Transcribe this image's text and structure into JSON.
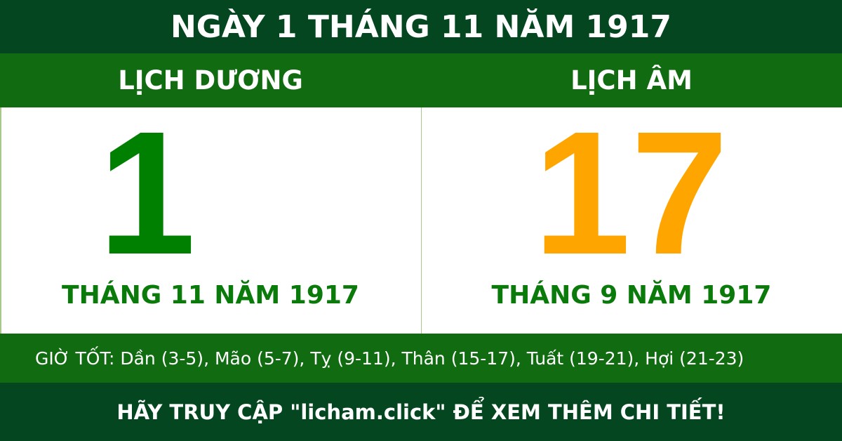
{
  "header": {
    "title": "NGÀY 1 THÁNG 11 NĂM 1917"
  },
  "solar": {
    "label": "LỊCH DƯƠNG",
    "day": "1",
    "month_year": "THÁNG 11 NĂM 1917"
  },
  "lunar": {
    "label": "LỊCH ÂM",
    "day": "17",
    "month_year": "THÁNG 9 NĂM 1917"
  },
  "good_hours": "GIỜ TỐT: Dần (3-5), Mão (5-7), Tỵ (9-11), Thân (15-17), Tuất (19-21), Hợi (21-23)",
  "footer": {
    "cta": "HÃY TRUY CẬP \"licham.click\" ĐỂ XEM THÊM CHI TIẾT!"
  },
  "colors": {
    "dark_green": "#04461f",
    "green": "#116b11",
    "solar_day": "#008000",
    "lunar_day": "#ffa500"
  }
}
